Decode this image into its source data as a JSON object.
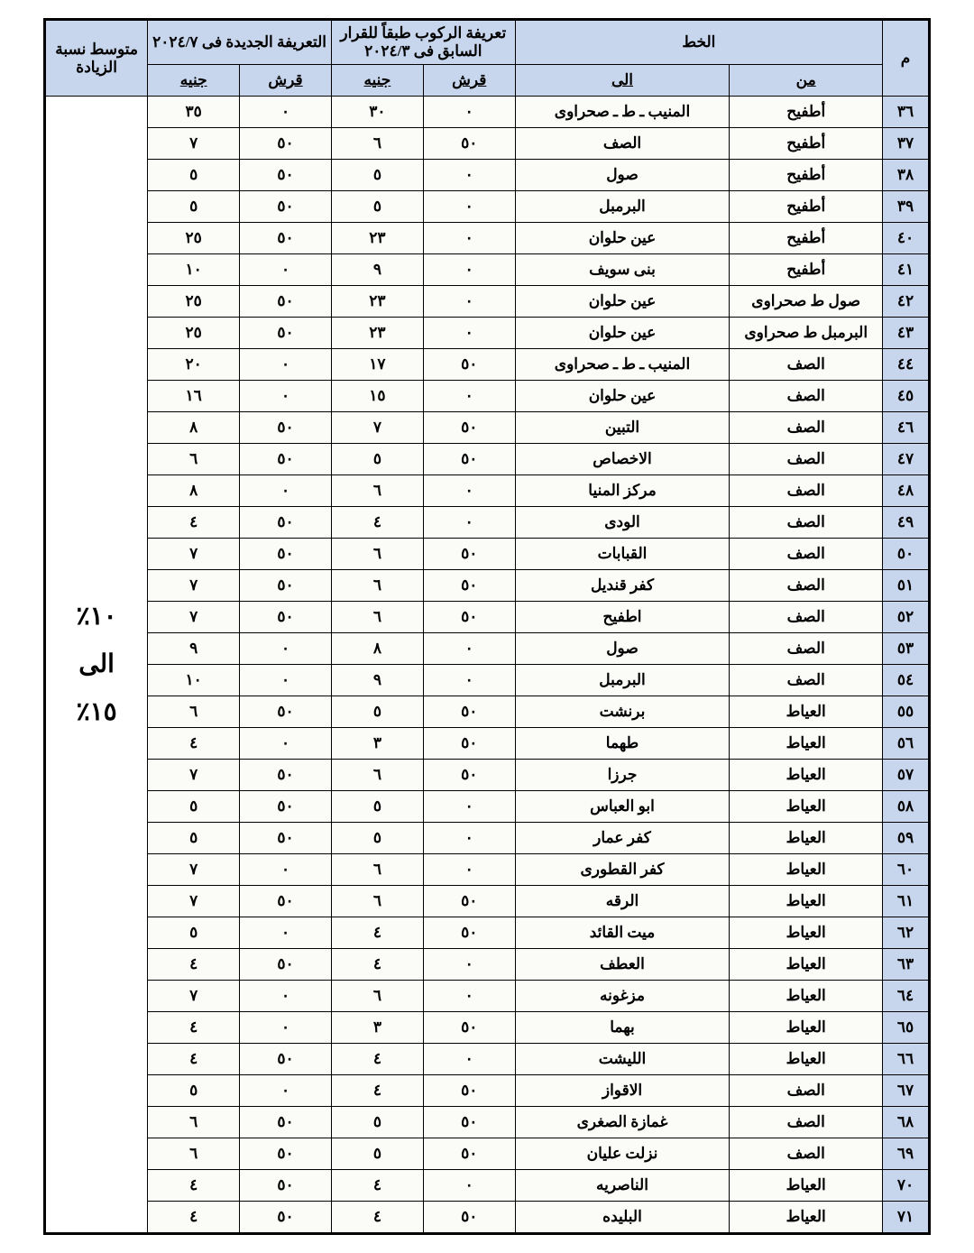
{
  "headers": {
    "index": "م",
    "route": "الخط",
    "from": "من",
    "to": "الى",
    "old_fare": "تعريفة الركوب طبقاً للقرار السابق فى ٢٠٢٤/٣",
    "new_fare": "التعريفة الجديدة فى ٢٠٢٤/٧",
    "qirsh": "قرش",
    "pound": "جنيه",
    "avg_increase": "متوسط نسبة الزيادة"
  },
  "avg_increase_text": [
    "١٠٪",
    "الى",
    "١٥٪"
  ],
  "columns_style": {
    "header_bg": "#c7d6ed",
    "border_color": "#000000",
    "font_size_header": 17,
    "font_size_body": 17,
    "font_weight": "bold"
  },
  "rows": [
    {
      "idx": "٣٦",
      "from": "أطفيح",
      "to": "المنيب ـ ط ـ صحراوى",
      "q1": "٠",
      "p1": "٣٠",
      "q2": "٠",
      "p2": "٣٥"
    },
    {
      "idx": "٣٧",
      "from": "أطفيح",
      "to": "الصف",
      "q1": "٥٠",
      "p1": "٦",
      "q2": "٥٠",
      "p2": "٧"
    },
    {
      "idx": "٣٨",
      "from": "أطفيح",
      "to": "صول",
      "q1": "٠",
      "p1": "٥",
      "q2": "٥٠",
      "p2": "٥"
    },
    {
      "idx": "٣٩",
      "from": "أطفيح",
      "to": "البرمبل",
      "q1": "٠",
      "p1": "٥",
      "q2": "٥٠",
      "p2": "٥"
    },
    {
      "idx": "٤٠",
      "from": "أطفيح",
      "to": "عين حلوان",
      "q1": "٠",
      "p1": "٢٣",
      "q2": "٥٠",
      "p2": "٢٥"
    },
    {
      "idx": "٤١",
      "from": "أطفيح",
      "to": "بنى سويف",
      "q1": "٠",
      "p1": "٩",
      "q2": "٠",
      "p2": "١٠"
    },
    {
      "idx": "٤٢",
      "from": "صول ط صحراوى",
      "to": "عين حلوان",
      "q1": "٠",
      "p1": "٢٣",
      "q2": "٥٠",
      "p2": "٢٥"
    },
    {
      "idx": "٤٣",
      "from": "البرمبل ط صحراوى",
      "to": "عين حلوان",
      "q1": "٠",
      "p1": "٢٣",
      "q2": "٥٠",
      "p2": "٢٥"
    },
    {
      "idx": "٤٤",
      "from": "الصف",
      "to": "المنيب ـ ط ـ صحراوى",
      "q1": "٥٠",
      "p1": "١٧",
      "q2": "٠",
      "p2": "٢٠"
    },
    {
      "idx": "٤٥",
      "from": "الصف",
      "to": "عين حلوان",
      "q1": "٠",
      "p1": "١٥",
      "q2": "٠",
      "p2": "١٦"
    },
    {
      "idx": "٤٦",
      "from": "الصف",
      "to": "التبين",
      "q1": "٥٠",
      "p1": "٧",
      "q2": "٥٠",
      "p2": "٨"
    },
    {
      "idx": "٤٧",
      "from": "الصف",
      "to": "الاخصاص",
      "q1": "٥٠",
      "p1": "٥",
      "q2": "٥٠",
      "p2": "٦"
    },
    {
      "idx": "٤٨",
      "from": "الصف",
      "to": "مركز المنيا",
      "q1": "٠",
      "p1": "٦",
      "q2": "٠",
      "p2": "٨"
    },
    {
      "idx": "٤٩",
      "from": "الصف",
      "to": "الودى",
      "q1": "٠",
      "p1": "٤",
      "q2": "٥٠",
      "p2": "٤"
    },
    {
      "idx": "٥٠",
      "from": "الصف",
      "to": "القبابات",
      "q1": "٥٠",
      "p1": "٦",
      "q2": "٥٠",
      "p2": "٧"
    },
    {
      "idx": "٥١",
      "from": "الصف",
      "to": "كفر قنديل",
      "q1": "٥٠",
      "p1": "٦",
      "q2": "٥٠",
      "p2": "٧"
    },
    {
      "idx": "٥٢",
      "from": "الصف",
      "to": "اطفيح",
      "q1": "٥٠",
      "p1": "٦",
      "q2": "٥٠",
      "p2": "٧"
    },
    {
      "idx": "٥٣",
      "from": "الصف",
      "to": "صول",
      "q1": "٠",
      "p1": "٨",
      "q2": "٠",
      "p2": "٩"
    },
    {
      "idx": "٥٤",
      "from": "الصف",
      "to": "البرمبل",
      "q1": "٠",
      "p1": "٩",
      "q2": "٠",
      "p2": "١٠"
    },
    {
      "idx": "٥٥",
      "from": "العياط",
      "to": "برنشت",
      "q1": "٥٠",
      "p1": "٥",
      "q2": "٥٠",
      "p2": "٦"
    },
    {
      "idx": "٥٦",
      "from": "العياط",
      "to": "طهما",
      "q1": "٥٠",
      "p1": "٣",
      "q2": "٠",
      "p2": "٤"
    },
    {
      "idx": "٥٧",
      "from": "العياط",
      "to": "جرزا",
      "q1": "٥٠",
      "p1": "٦",
      "q2": "٥٠",
      "p2": "٧"
    },
    {
      "idx": "٥٨",
      "from": "العياط",
      "to": "ابو العباس",
      "q1": "٠",
      "p1": "٥",
      "q2": "٥٠",
      "p2": "٥"
    },
    {
      "idx": "٥٩",
      "from": "العياط",
      "to": "كفر عمار",
      "q1": "٠",
      "p1": "٥",
      "q2": "٥٠",
      "p2": "٥"
    },
    {
      "idx": "٦٠",
      "from": "العياط",
      "to": "كفر القطورى",
      "q1": "٠",
      "p1": "٦",
      "q2": "٠",
      "p2": "٧"
    },
    {
      "idx": "٦١",
      "from": "العياط",
      "to": "الرقه",
      "q1": "٥٠",
      "p1": "٦",
      "q2": "٥٠",
      "p2": "٧"
    },
    {
      "idx": "٦٢",
      "from": "العياط",
      "to": "ميت القائد",
      "q1": "٥٠",
      "p1": "٤",
      "q2": "٠",
      "p2": "٥"
    },
    {
      "idx": "٦٣",
      "from": "العياط",
      "to": "العطف",
      "q1": "٠",
      "p1": "٤",
      "q2": "٥٠",
      "p2": "٤"
    },
    {
      "idx": "٦٤",
      "from": "العياط",
      "to": "مزغونه",
      "q1": "٠",
      "p1": "٦",
      "q2": "٠",
      "p2": "٧"
    },
    {
      "idx": "٦٥",
      "from": "العياط",
      "to": "بهما",
      "q1": "٥٠",
      "p1": "٣",
      "q2": "٠",
      "p2": "٤"
    },
    {
      "idx": "٦٦",
      "from": "العياط",
      "to": "الليشت",
      "q1": "٠",
      "p1": "٤",
      "q2": "٥٠",
      "p2": "٤"
    },
    {
      "idx": "٦٧",
      "from": "الصف",
      "to": "الاقواز",
      "q1": "٥٠",
      "p1": "٤",
      "q2": "٠",
      "p2": "٥"
    },
    {
      "idx": "٦٨",
      "from": "الصف",
      "to": "غمازة الصغرى",
      "q1": "٥٠",
      "p1": "٥",
      "q2": "٥٠",
      "p2": "٦"
    },
    {
      "idx": "٦٩",
      "from": "الصف",
      "to": "نزلت عليان",
      "q1": "٥٠",
      "p1": "٥",
      "q2": "٥٠",
      "p2": "٦"
    },
    {
      "idx": "٧٠",
      "from": "العياط",
      "to": "الناصريه",
      "q1": "٠",
      "p1": "٤",
      "q2": "٥٠",
      "p2": "٤"
    },
    {
      "idx": "٧١",
      "from": "العياط",
      "to": "البليده",
      "q1": "٥٠",
      "p1": "٤",
      "q2": "٥٠",
      "p2": "٤"
    }
  ]
}
